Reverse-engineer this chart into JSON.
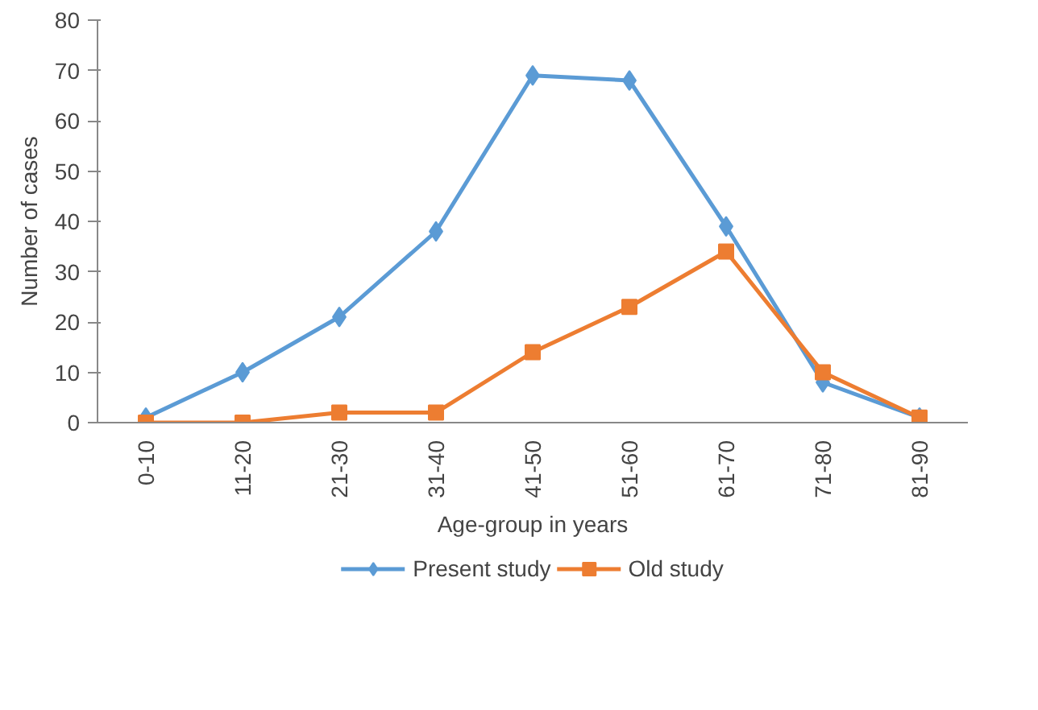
{
  "chart_data": {
    "type": "line",
    "xlabel": "Age-group in years",
    "ylabel": "Number of cases",
    "categories": [
      "0-10",
      "11-20",
      "21-30",
      "31-40",
      "41-50",
      "51-60",
      "61-70",
      "71-80",
      "81-90"
    ],
    "ylim": [
      0,
      80
    ],
    "yticks": [
      0,
      10,
      20,
      30,
      40,
      50,
      60,
      70,
      80
    ],
    "grid": false,
    "legend": "bottom",
    "series": [
      {
        "name": "Present study",
        "color": "#5b9bd5",
        "marker": "diamond",
        "values": [
          1,
          10,
          21,
          38,
          69,
          68,
          39,
          8,
          1
        ]
      },
      {
        "name": "Old study",
        "color": "#ed7d31",
        "marker": "square",
        "values": [
          0,
          0,
          2,
          2,
          14,
          23,
          34,
          10,
          1
        ]
      }
    ]
  }
}
